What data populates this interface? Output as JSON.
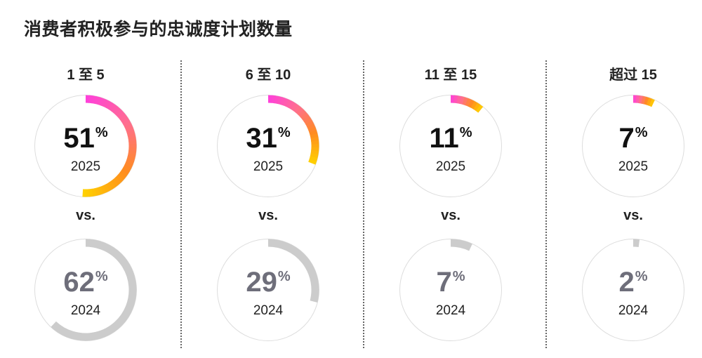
{
  "title": "消费者积极参与的忠诚度计划数量",
  "vs_label": "vs.",
  "colors": {
    "gradient": [
      "#ff3fdc",
      "#ff6e8f",
      "#ff8c1f",
      "#ffd200"
    ],
    "prior": "#cccccc",
    "track": "#dddddd"
  },
  "chart_data": {
    "type": "donut",
    "years": [
      "2025",
      "2024"
    ],
    "categories": [
      "1 至 5",
      "6 至 10",
      "11 至 15",
      "超过 15"
    ],
    "series": [
      {
        "name": "2025",
        "values": [
          51,
          31,
          11,
          7
        ]
      },
      {
        "name": "2024",
        "values": [
          62,
          29,
          7,
          2
        ]
      }
    ],
    "unit": "%"
  }
}
